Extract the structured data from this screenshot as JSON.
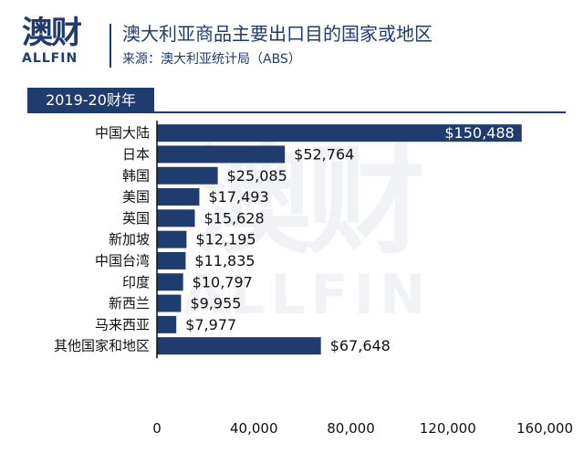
{
  "header": {
    "logo_cn": "澳财",
    "logo_en": "ALLFIN",
    "title": "澳大利亚商品主要出口目的国家或地区",
    "source": "来源：澳大利亚统计局（ABS）",
    "period_badge": "2019-20财年"
  },
  "chart_data": {
    "type": "bar",
    "orientation": "horizontal",
    "title": "澳大利亚商品主要出口目的国家或地区",
    "period": "2019-20财年",
    "categories": [
      "中国大陆",
      "日本",
      "韩国",
      "美国",
      "英国",
      "新加坡",
      "中国台湾",
      "印度",
      "新西兰",
      "马来西亚",
      "其他国家和地区"
    ],
    "values": [
      150488,
      52764,
      25085,
      17493,
      15628,
      12195,
      11835,
      10797,
      9955,
      7977,
      67648
    ],
    "value_labels": [
      "$150,488",
      "$52,764",
      "$25,085",
      "$17,493",
      "$15,628",
      "$12,195",
      "$11,835",
      "$10,797",
      "$9,955",
      "$7,977",
      "$67,648"
    ],
    "xlim": [
      0,
      160000
    ],
    "xticks": [
      0,
      40000,
      80000,
      120000,
      160000
    ],
    "xtick_labels": [
      "0",
      "40,000",
      "80,000",
      "120,000",
      "160,000"
    ],
    "grid": false,
    "bar_color": "#1f3c6e"
  }
}
